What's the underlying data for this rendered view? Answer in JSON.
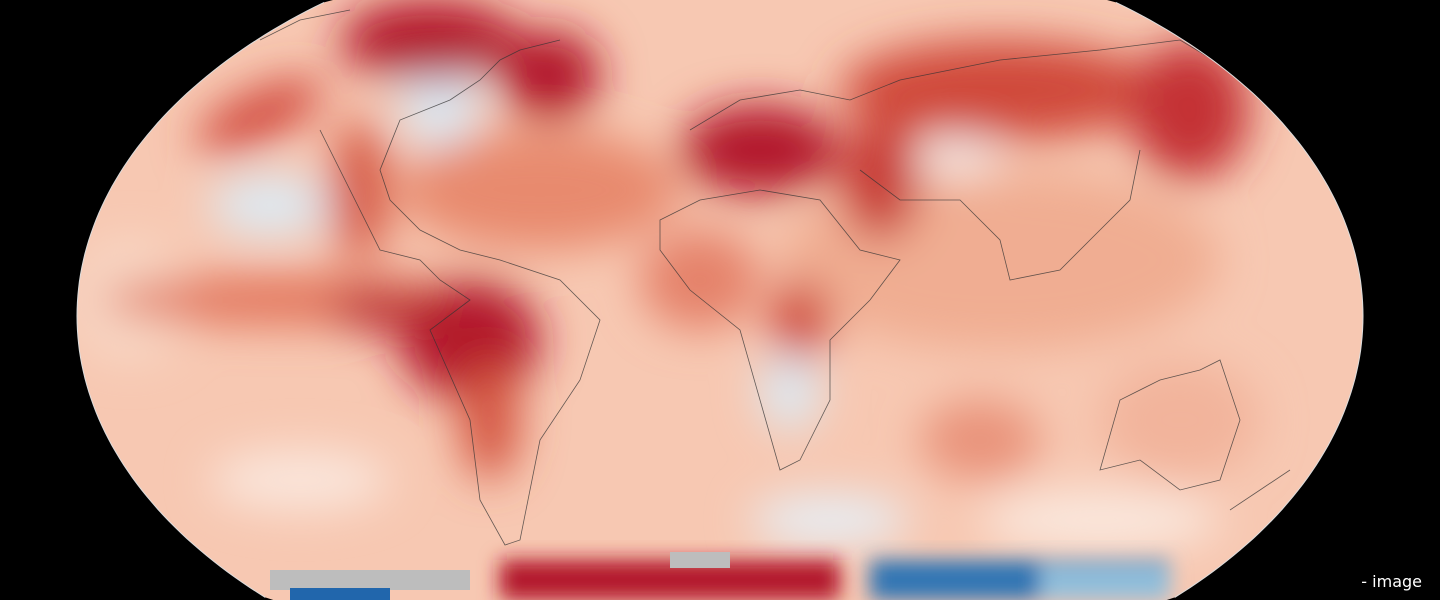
{
  "caption": "- image",
  "map": {
    "projection": "robinson",
    "colors": {
      "background": "#000000",
      "base": "#f7c8b2",
      "hot": "#b2182b",
      "warm": "#e0684f",
      "neutral": "#f7f7f7",
      "cool": "#d6e6f2",
      "cold": "#2166ac",
      "no_data": "#bdbdbd",
      "coastline": "#333333"
    }
  }
}
